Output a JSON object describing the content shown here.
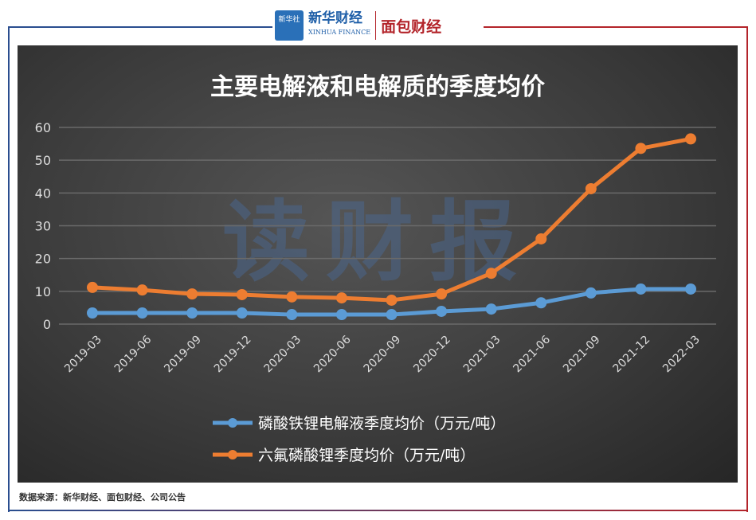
{
  "header": {
    "logo_xinhua": "新华社",
    "logo_finance": "新华财经",
    "logo_finance_en": "XINHUA FINANCE",
    "logo_mianbao": "面包财经"
  },
  "watermark": "读财报",
  "footer": "数据来源：新华财经、面包财经、公司公告",
  "colors": {
    "blue": "#5b9bd5",
    "orange": "#ed7d31",
    "background": "#3a3a3a"
  },
  "chart_data": {
    "type": "line",
    "title": "主要电解液和电解质的季度均价",
    "categories": [
      "2019-03",
      "2019-06",
      "2019-09",
      "2019-12",
      "2020-03",
      "2020-06",
      "2020-09",
      "2020-12",
      "2021-03",
      "2021-06",
      "2021-09",
      "2021-12",
      "2022-03"
    ],
    "ylim": [
      0,
      60
    ],
    "yticks": [
      0,
      10,
      20,
      30,
      40,
      50,
      60
    ],
    "grid": true,
    "legend": "bottom",
    "series": [
      {
        "name": "磷酸铁锂电解液季度均价（万元/吨）",
        "color": "#5b9bd5",
        "values": [
          3.4,
          3.4,
          3.4,
          3.4,
          2.9,
          2.9,
          2.9,
          3.9,
          4.6,
          6.5,
          9.5,
          10.7,
          10.7
        ]
      },
      {
        "name": "六氟磷酸锂季度均价（万元/吨）",
        "color": "#ed7d31",
        "values": [
          11.2,
          10.4,
          9.2,
          9.0,
          8.3,
          8.0,
          7.3,
          9.2,
          15.5,
          26.0,
          41.3,
          53.6,
          56.5
        ]
      }
    ]
  }
}
